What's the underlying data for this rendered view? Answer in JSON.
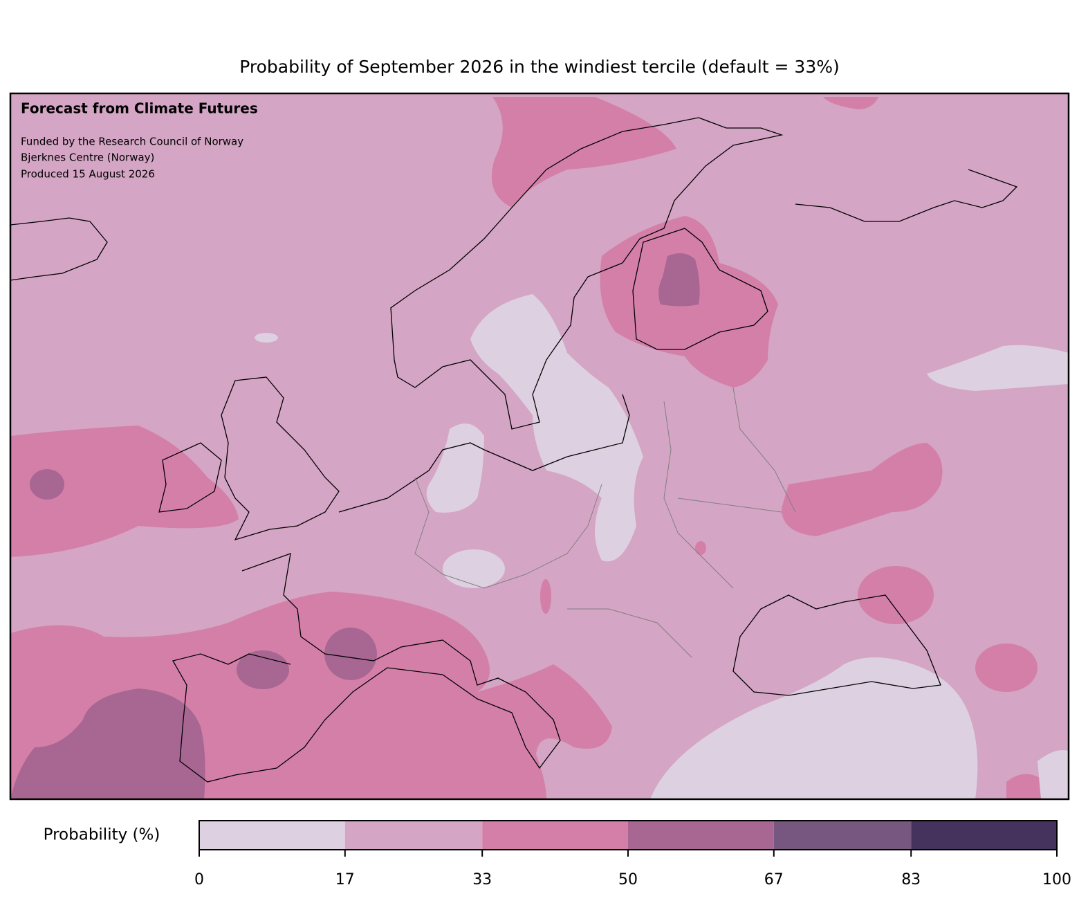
{
  "title": "Probability of September 2026 in the windiest tercile (default = 33%)",
  "map": {
    "heading": "Forecast from Climate Futures",
    "credits": [
      "Funded by the Research Council of Norway",
      "Bjerknes Centre (Norway)",
      "Produced 15 August 2026"
    ]
  },
  "colorbar": {
    "label": "Probability (%)",
    "ticks": [
      0,
      17,
      33,
      50,
      67,
      83,
      100
    ],
    "colors": [
      "#ddd0e0",
      "#d4a5c4",
      "#d47fa8",
      "#a86692",
      "#775780",
      "#45335e"
    ]
  }
}
